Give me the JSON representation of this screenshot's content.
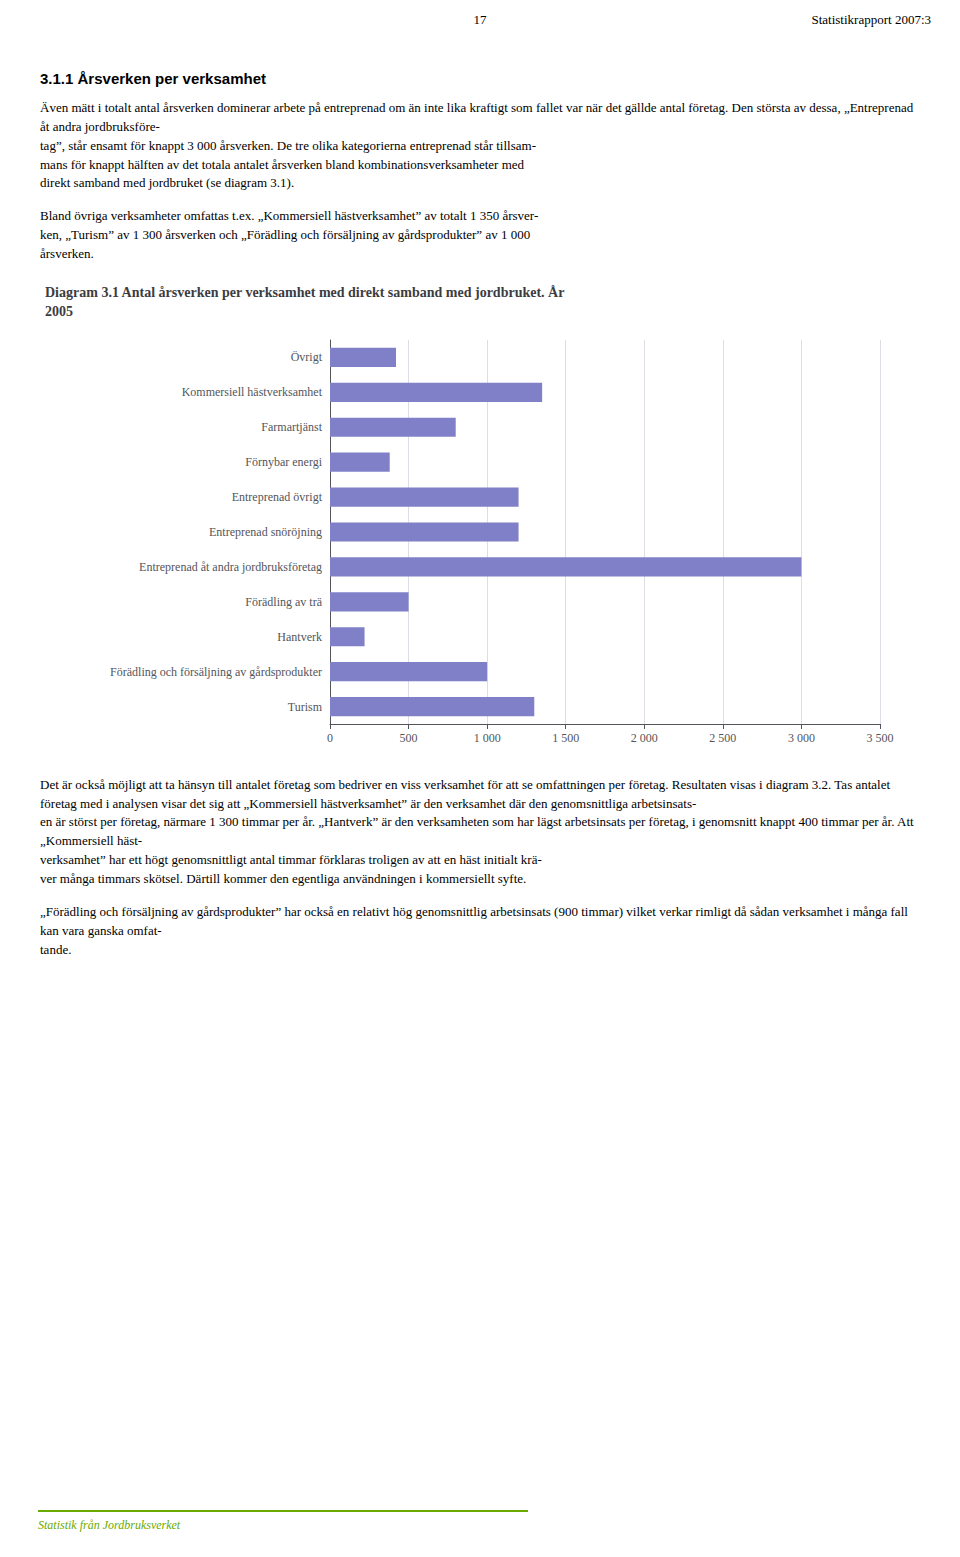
{
  "header_num": "17",
  "header_right": "Statistikrapport 2007:3",
  "section_title": "3.1.1 Årsverken per verksamhet",
  "body_texts_before": [
    "Även mätt i totalt antal årsverken dominerar arbete på entreprenad om än inte lika kraftigt som fallet var när det gällde antal företag. Den största av dessa, „Entreprenad åt andra jordbruksföre-\ntag”, står ensamt för knappt 3 000 årsverken. De tre olika kategorierna entreprenad står tillsam-\nmans för knappt hälften av det totala antalet årsverken bland kombinationsverksamheter med\ndirekt samband med jordbruket (se diagram 3.1).",
    "Bland övriga verksamheter omfattas t.ex. „Kommersiell hästverksamhet” av totalt 1 350 årsver-\nken, „Turism” av 1 300 årsverken och „Förädling och försäljning av gårdsprodukter” av 1 000\nårsverken."
  ],
  "body_texts_after": [
    "Det är också möjligt att ta hänsyn till antalet företag som bedriver en viss verksamhet för att se omfattningen per företag. Resultaten visas i diagram 3.2. Tas antalet företag med i analysen visar det sig att „Kommersiell hästverksamhet” är den verksamhet där den genomsnittliga arbetsinsats-\nen är störst per företag, närmare 1 300 timmar per år. „Hantverk” är den verksamheten som har lägst arbetsinsats per företag, i genomsnitt knappt 400 timmar per år. Att „Kommersiell häst-\nverksamhet” har ett högt genomsnittligt antal timmar förklaras troligen av att en häst initialt krä-\nver många timmars skötsel. Därtill kommer den egentliga användningen i kommersiellt syfte.",
    "„Förädling och försäljning av gårdsprodukter” har också en relativt hög genomsnittlig arbetsinsats (900 timmar) vilket verkar rimligt då sådan verksamhet i många fall kan vara ganska omfat-\ntande."
  ],
  "footer_text": "Statistik från Jordbruksverket",
  "footer_color": "#6aaa00",
  "chart_data": {
    "type": "bar",
    "orientation": "horizontal",
    "title": "Diagram 3.1 Antal årsverken per verksamhet med direkt samband med jordbruket. År\n2005",
    "categories": [
      "Övrigt",
      "Kommersiell hästverksamhet",
      "Farmartjänst",
      "Förnybar energi",
      "Entreprenad övrigt",
      "Entreprenad snöröjning",
      "Entreprenad åt andra jordbruksföretag",
      "Förädling av trä",
      "Hantverk",
      "Förädling och försäljning av gårdsprodukter",
      "Turism"
    ],
    "values": [
      420,
      1350,
      800,
      380,
      1200,
      1200,
      3000,
      500,
      220,
      1000,
      1300
    ],
    "color": "#8080c8",
    "xlim": [
      0,
      3500
    ],
    "xticks": [
      0,
      500,
      {
        "value": 1000,
        "label": "1 000"
      },
      {
        "value": 1500,
        "label": "1 500"
      },
      {
        "value": 2000,
        "label": "2 000"
      },
      {
        "value": 2500,
        "label": "2 500"
      },
      {
        "value": 3000,
        "label": "3 000"
      },
      {
        "value": 3500,
        "label": "3 500"
      }
    ],
    "grid": true
  }
}
